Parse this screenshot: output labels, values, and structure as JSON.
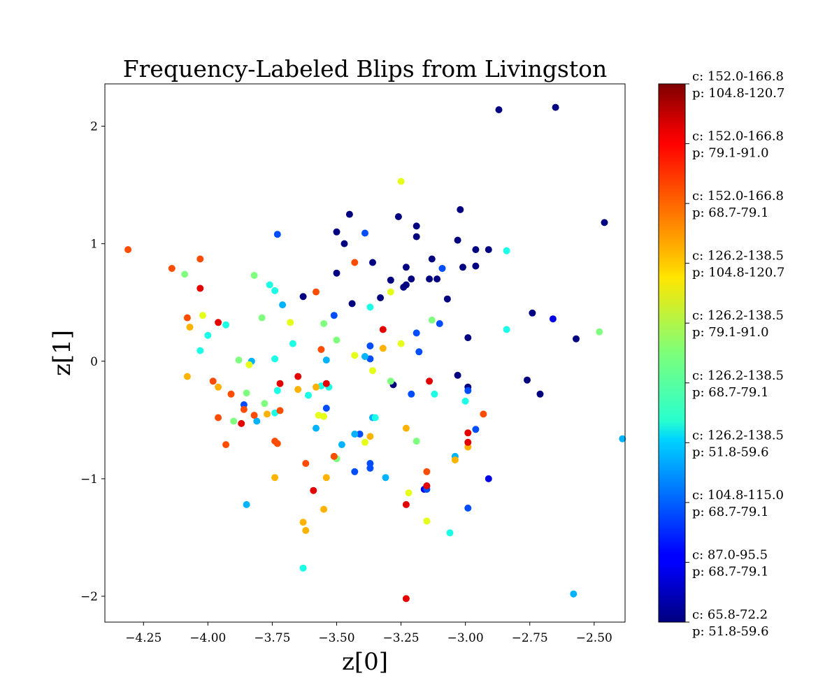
{
  "chart_data": {
    "type": "scatter",
    "title": "Frequency-Labeled Blips from Livingston",
    "xlabel": "z[0]",
    "ylabel": "z[1]",
    "xlim": [
      -4.4,
      -2.38
    ],
    "ylim": [
      -2.22,
      2.36
    ],
    "xticks": [
      -4.25,
      -4.0,
      -3.75,
      -3.5,
      -3.25,
      -3.0,
      -2.75,
      -2.5
    ],
    "xtick_labels": [
      "−4.25",
      "−4.00",
      "−3.75",
      "−3.50",
      "−3.25",
      "−3.00",
      "−2.75",
      "−2.50"
    ],
    "yticks": [
      2,
      1,
      0,
      -1,
      -2
    ],
    "ytick_labels": [
      "2",
      "1",
      "0",
      "−1",
      "−2"
    ],
    "grid": false,
    "colormap": "jet",
    "colorbar": {
      "labels": [
        {
          "c": "c: 65.8-72.2",
          "p": "p: 51.8-59.6"
        },
        {
          "c": "c: 87.0-95.5",
          "p": "p: 68.7-79.1"
        },
        {
          "c": "c: 104.8-115.0",
          "p": "p: 68.7-79.1"
        },
        {
          "c": "c: 126.2-138.5",
          "p": "p: 51.8-59.6"
        },
        {
          "c": "c: 126.2-138.5",
          "p": "p: 68.7-79.1"
        },
        {
          "c": "c: 126.2-138.5",
          "p": "p: 79.1-91.0"
        },
        {
          "c": "c: 126.2-138.5",
          "p": "p: 104.8-120.7"
        },
        {
          "c": "c: 152.0-166.8",
          "p": "p: 68.7-79.1"
        },
        {
          "c": "c: 152.0-166.8",
          "p": "p: 79.1-91.0"
        },
        {
          "c": "c: 152.0-166.8",
          "p": "p: 104.8-120.7"
        }
      ]
    },
    "points": [
      {
        "x": -2.87,
        "y": 2.14,
        "c": 0
      },
      {
        "x": -2.65,
        "y": 2.16,
        "c": 0
      },
      {
        "x": -2.46,
        "y": 1.18,
        "c": 0
      },
      {
        "x": -3.02,
        "y": 1.29,
        "c": 0
      },
      {
        "x": -3.26,
        "y": 1.23,
        "c": 0
      },
      {
        "x": -3.45,
        "y": 1.25,
        "c": 0
      },
      {
        "x": -3.19,
        "y": 1.15,
        "c": 0
      },
      {
        "x": -3.19,
        "y": 1.06,
        "c": 0
      },
      {
        "x": -3.5,
        "y": 1.1,
        "c": 0
      },
      {
        "x": -3.47,
        "y": 1.0,
        "c": 0
      },
      {
        "x": -3.03,
        "y": 1.03,
        "c": 0
      },
      {
        "x": -2.96,
        "y": 0.95,
        "c": 0
      },
      {
        "x": -2.91,
        "y": 0.95,
        "c": 0
      },
      {
        "x": -2.96,
        "y": 0.81,
        "c": 0
      },
      {
        "x": -3.01,
        "y": 0.8,
        "c": 0
      },
      {
        "x": -3.13,
        "y": 0.87,
        "c": 0
      },
      {
        "x": -3.23,
        "y": 0.8,
        "c": 0
      },
      {
        "x": -3.36,
        "y": 0.84,
        "c": 0
      },
      {
        "x": -3.5,
        "y": 0.75,
        "c": 0
      },
      {
        "x": -3.29,
        "y": 0.69,
        "c": 0
      },
      {
        "x": -3.21,
        "y": 0.7,
        "c": 0
      },
      {
        "x": -3.14,
        "y": 0.7,
        "c": 0
      },
      {
        "x": -3.11,
        "y": 0.7,
        "c": 0
      },
      {
        "x": -3.23,
        "y": 0.65,
        "c": 0
      },
      {
        "x": -3.24,
        "y": 0.63,
        "c": 0
      },
      {
        "x": -3.33,
        "y": 0.54,
        "c": 0
      },
      {
        "x": -3.07,
        "y": 0.53,
        "c": 0
      },
      {
        "x": -3.63,
        "y": 0.55,
        "c": 0
      },
      {
        "x": -3.44,
        "y": 0.49,
        "c": 0
      },
      {
        "x": -2.74,
        "y": 0.41,
        "c": 0
      },
      {
        "x": -2.99,
        "y": 0.2,
        "c": 0
      },
      {
        "x": -2.57,
        "y": 0.19,
        "c": 0
      },
      {
        "x": -3.03,
        "y": -0.12,
        "c": 0
      },
      {
        "x": -2.76,
        "y": -0.16,
        "c": 0
      },
      {
        "x": -3.28,
        "y": -0.2,
        "c": 0
      },
      {
        "x": -2.99,
        "y": -0.22,
        "c": 0
      },
      {
        "x": -2.71,
        "y": -0.28,
        "c": 0
      },
      {
        "x": -2.91,
        "y": -1.0,
        "c": 0.1
      },
      {
        "x": -3.16,
        "y": -1.09,
        "c": 0.1
      },
      {
        "x": -2.66,
        "y": 0.36,
        "c": 0.1
      },
      {
        "x": -3.73,
        "y": 1.08,
        "c": 0.2
      },
      {
        "x": -3.39,
        "y": 1.09,
        "c": 0.2
      },
      {
        "x": -3.09,
        "y": 0.79,
        "c": 0.2
      },
      {
        "x": -3.51,
        "y": 0.39,
        "c": 0.2
      },
      {
        "x": -3.19,
        "y": 0.24,
        "c": 0.2
      },
      {
        "x": -3.1,
        "y": 0.32,
        "c": 0.2
      },
      {
        "x": -3.37,
        "y": 0.13,
        "c": 0.2
      },
      {
        "x": -3.18,
        "y": 0.08,
        "c": 0.2
      },
      {
        "x": -3.37,
        "y": 0.02,
        "c": 0.2
      },
      {
        "x": -2.99,
        "y": -0.25,
        "c": 0.2
      },
      {
        "x": -3.21,
        "y": -0.28,
        "c": 0.2
      },
      {
        "x": -3.54,
        "y": -0.4,
        "c": 0.2
      },
      {
        "x": -3.86,
        "y": -0.37,
        "c": 0.2
      },
      {
        "x": -2.96,
        "y": -0.58,
        "c": 0.2
      },
      {
        "x": -3.41,
        "y": -0.62,
        "c": 0.2
      },
      {
        "x": -3.37,
        "y": -0.87,
        "c": 0.2
      },
      {
        "x": -3.37,
        "y": -0.91,
        "c": 0.2
      },
      {
        "x": -3.43,
        "y": -0.94,
        "c": 0.2
      },
      {
        "x": -2.99,
        "y": -1.25,
        "c": 0.2
      },
      {
        "x": -3.15,
        "y": -1.09,
        "c": 0.2
      },
      {
        "x": -3.71,
        "y": 0.48,
        "c": 0.3
      },
      {
        "x": -3.39,
        "y": 0.04,
        "c": 0.3
      },
      {
        "x": -3.54,
        "y": 0.01,
        "c": 0.3
      },
      {
        "x": -3.83,
        "y": 0.0,
        "c": 0.3
      },
      {
        "x": -3.81,
        "y": -0.51,
        "c": 0.3
      },
      {
        "x": -3.58,
        "y": -0.57,
        "c": 0.3
      },
      {
        "x": -3.43,
        "y": -0.62,
        "c": 0.3
      },
      {
        "x": -3.36,
        "y": -0.48,
        "c": 0.3
      },
      {
        "x": -3.48,
        "y": -0.71,
        "c": 0.3
      },
      {
        "x": -3.04,
        "y": -0.81,
        "c": 0.3
      },
      {
        "x": -3.31,
        "y": -0.99,
        "c": 0.3
      },
      {
        "x": -3.85,
        "y": -1.22,
        "c": 0.3
      },
      {
        "x": -2.39,
        "y": -0.66,
        "c": 0.3
      },
      {
        "x": -2.58,
        "y": -1.98,
        "c": 0.3
      },
      {
        "x": -2.84,
        "y": 0.94,
        "c": 0.4
      },
      {
        "x": -2.84,
        "y": 0.27,
        "c": 0.4
      },
      {
        "x": -3.37,
        "y": 0.46,
        "c": 0.4
      },
      {
        "x": -3.76,
        "y": 0.65,
        "c": 0.4
      },
      {
        "x": -3.74,
        "y": 0.6,
        "c": 0.4
      },
      {
        "x": -4.0,
        "y": 0.22,
        "c": 0.4
      },
      {
        "x": -3.93,
        "y": 0.31,
        "c": 0.4
      },
      {
        "x": -4.03,
        "y": 0.09,
        "c": 0.4
      },
      {
        "x": -3.67,
        "y": 0.15,
        "c": 0.4
      },
      {
        "x": -3.74,
        "y": 0.02,
        "c": 0.4
      },
      {
        "x": -3.73,
        "y": -0.25,
        "c": 0.4
      },
      {
        "x": -3.56,
        "y": -0.21,
        "c": 0.4
      },
      {
        "x": -3.53,
        "y": -0.22,
        "c": 0.4
      },
      {
        "x": -3.61,
        "y": -0.29,
        "c": 0.4
      },
      {
        "x": -3.12,
        "y": -0.28,
        "c": 0.4
      },
      {
        "x": -3.0,
        "y": -0.34,
        "c": 0.4
      },
      {
        "x": -3.74,
        "y": -0.44,
        "c": 0.4
      },
      {
        "x": -3.35,
        "y": -0.48,
        "c": 0.4
      },
      {
        "x": -3.63,
        "y": -1.76,
        "c": 0.4
      },
      {
        "x": -3.06,
        "y": -1.46,
        "c": 0.4
      },
      {
        "x": -4.09,
        "y": 0.74,
        "c": 0.5
      },
      {
        "x": -3.82,
        "y": 0.73,
        "c": 0.5
      },
      {
        "x": -3.79,
        "y": 0.37,
        "c": 0.5
      },
      {
        "x": -3.55,
        "y": 0.32,
        "c": 0.5
      },
      {
        "x": -3.5,
        "y": 0.18,
        "c": 0.5
      },
      {
        "x": -3.13,
        "y": 0.35,
        "c": 0.5
      },
      {
        "x": -3.88,
        "y": 0.01,
        "c": 0.5
      },
      {
        "x": -3.85,
        "y": -0.27,
        "c": 0.5
      },
      {
        "x": -3.78,
        "y": -0.36,
        "c": 0.5
      },
      {
        "x": -3.29,
        "y": -0.17,
        "c": 0.5
      },
      {
        "x": -3.9,
        "y": -0.51,
        "c": 0.5
      },
      {
        "x": -3.5,
        "y": -0.83,
        "c": 0.5
      },
      {
        "x": -3.19,
        "y": -0.68,
        "c": 0.5
      },
      {
        "x": -2.48,
        "y": 0.25,
        "c": 0.5
      },
      {
        "x": -3.25,
        "y": 1.53,
        "c": 0.6
      },
      {
        "x": -3.29,
        "y": 0.59,
        "c": 0.6
      },
      {
        "x": -4.02,
        "y": 0.39,
        "c": 0.6
      },
      {
        "x": -3.68,
        "y": 0.33,
        "c": 0.6
      },
      {
        "x": -3.25,
        "y": 0.15,
        "c": 0.6
      },
      {
        "x": -3.43,
        "y": 0.05,
        "c": 0.6
      },
      {
        "x": -3.84,
        "y": -0.03,
        "c": 0.6
      },
      {
        "x": -3.36,
        "y": -0.08,
        "c": 0.6
      },
      {
        "x": -3.57,
        "y": -0.46,
        "c": 0.6
      },
      {
        "x": -3.55,
        "y": -0.47,
        "c": 0.6
      },
      {
        "x": -3.39,
        "y": -0.69,
        "c": 0.6
      },
      {
        "x": -3.22,
        "y": -1.12,
        "c": 0.6
      },
      {
        "x": -3.15,
        "y": -1.36,
        "c": 0.6
      },
      {
        "x": -4.07,
        "y": 0.29,
        "c": 0.7
      },
      {
        "x": -4.08,
        "y": -0.13,
        "c": 0.7
      },
      {
        "x": -3.96,
        "y": -0.22,
        "c": 0.7
      },
      {
        "x": -3.65,
        "y": -0.24,
        "c": 0.7
      },
      {
        "x": -3.58,
        "y": -0.22,
        "c": 0.7
      },
      {
        "x": -3.32,
        "y": 0.11,
        "c": 0.7
      },
      {
        "x": -3.77,
        "y": -0.45,
        "c": 0.7
      },
      {
        "x": -3.23,
        "y": -0.57,
        "c": 0.7
      },
      {
        "x": -3.37,
        "y": -0.64,
        "c": 0.7
      },
      {
        "x": -2.99,
        "y": -0.73,
        "c": 0.7
      },
      {
        "x": -3.04,
        "y": -0.84,
        "c": 0.7
      },
      {
        "x": -3.74,
        "y": -0.99,
        "c": 0.7
      },
      {
        "x": -3.54,
        "y": -0.99,
        "c": 0.7
      },
      {
        "x": -3.55,
        "y": -1.26,
        "c": 0.7
      },
      {
        "x": -3.63,
        "y": -1.37,
        "c": 0.7
      },
      {
        "x": -3.62,
        "y": -1.44,
        "c": 0.7
      },
      {
        "x": -4.31,
        "y": 0.95,
        "c": 0.8
      },
      {
        "x": -4.14,
        "y": 0.79,
        "c": 0.8
      },
      {
        "x": -4.03,
        "y": 0.87,
        "c": 0.8
      },
      {
        "x": -3.43,
        "y": 0.84,
        "c": 0.8
      },
      {
        "x": -3.58,
        "y": 0.59,
        "c": 0.8
      },
      {
        "x": -4.08,
        "y": 0.37,
        "c": 0.8
      },
      {
        "x": -3.56,
        "y": 0.1,
        "c": 0.8
      },
      {
        "x": -3.98,
        "y": -0.17,
        "c": 0.8
      },
      {
        "x": -3.91,
        "y": -0.28,
        "c": 0.8
      },
      {
        "x": -3.86,
        "y": -0.41,
        "c": 0.8
      },
      {
        "x": -3.82,
        "y": -0.46,
        "c": 0.8
      },
      {
        "x": -3.72,
        "y": -0.42,
        "c": 0.8
      },
      {
        "x": -3.96,
        "y": -0.48,
        "c": 0.8
      },
      {
        "x": -3.93,
        "y": -0.71,
        "c": 0.8
      },
      {
        "x": -3.74,
        "y": -0.68,
        "c": 0.8
      },
      {
        "x": -3.73,
        "y": -0.7,
        "c": 0.8
      },
      {
        "x": -2.93,
        "y": -0.45,
        "c": 0.8
      },
      {
        "x": -3.15,
        "y": -0.94,
        "c": 0.8
      },
      {
        "x": -3.62,
        "y": -0.87,
        "c": 0.8
      },
      {
        "x": -3.51,
        "y": -0.81,
        "c": 0.8
      },
      {
        "x": -4.03,
        "y": 0.62,
        "c": 0.9
      },
      {
        "x": -3.96,
        "y": 0.33,
        "c": 0.9
      },
      {
        "x": -3.32,
        "y": 0.27,
        "c": 0.9
      },
      {
        "x": -3.65,
        "y": -0.13,
        "c": 0.9
      },
      {
        "x": -3.72,
        "y": -0.19,
        "c": 0.9
      },
      {
        "x": -3.54,
        "y": -0.19,
        "c": 0.9
      },
      {
        "x": -3.14,
        "y": -0.17,
        "c": 0.9
      },
      {
        "x": -3.87,
        "y": -0.53,
        "c": 0.9
      },
      {
        "x": -2.99,
        "y": -0.61,
        "c": 0.9
      },
      {
        "x": -2.99,
        "y": -0.69,
        "c": 0.9
      },
      {
        "x": -3.15,
        "y": -1.06,
        "c": 0.9
      },
      {
        "x": -3.59,
        "y": -1.1,
        "c": 0.9
      },
      {
        "x": -3.23,
        "y": -1.22,
        "c": 0.9
      },
      {
        "x": -3.23,
        "y": -2.02,
        "c": 0.9
      }
    ]
  }
}
